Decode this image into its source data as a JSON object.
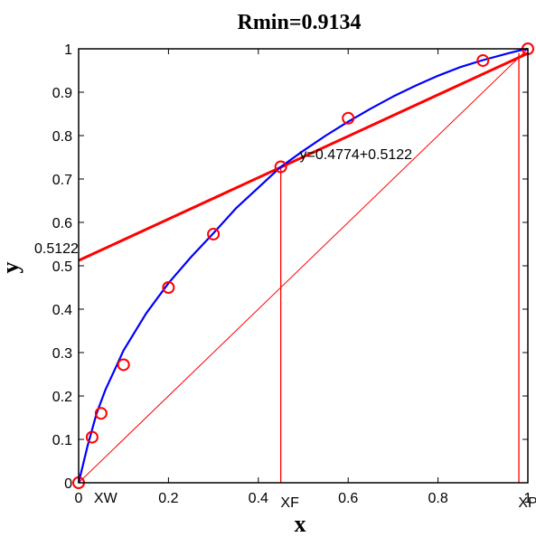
{
  "chart_data": {
    "type": "line",
    "title": "Rmin=0.9134",
    "xlabel": "x",
    "ylabel": "y",
    "xlim": [
      0,
      1
    ],
    "ylim": [
      0,
      1
    ],
    "x_ticks": [
      {
        "value": 0,
        "label": "0"
      },
      {
        "value": 0.2,
        "label": "0.2"
      },
      {
        "value": 0.4,
        "label": "0.4"
      },
      {
        "value": 0.6,
        "label": "0.6"
      },
      {
        "value": 0.8,
        "label": "0.8"
      },
      {
        "value": 1,
        "label": "1"
      }
    ],
    "y_ticks": [
      {
        "value": 0,
        "label": "0"
      },
      {
        "value": 0.1,
        "label": "0.1"
      },
      {
        "value": 0.2,
        "label": "0.2"
      },
      {
        "value": 0.3,
        "label": "0.3"
      },
      {
        "value": 0.4,
        "label": "0.4"
      },
      {
        "value": 0.5,
        "label": "0.5"
      },
      {
        "value": 0.6,
        "label": "0.6"
      },
      {
        "value": 0.7,
        "label": "0.7"
      },
      {
        "value": 0.8,
        "label": "0.8"
      },
      {
        "value": 0.9,
        "label": "0.9"
      },
      {
        "value": 1,
        "label": "1"
      }
    ],
    "grid": false,
    "colors": {
      "equilibrium_curve": "#0000ff",
      "operating_line": "#ff0000",
      "diagonal": "#ff0000",
      "markers": "#ff0000",
      "axes": "#000000"
    },
    "equilibrium_curve": {
      "points": [
        [
          0,
          0
        ],
        [
          0.02,
          0.085
        ],
        [
          0.04,
          0.16
        ],
        [
          0.06,
          0.215
        ],
        [
          0.08,
          0.26
        ],
        [
          0.1,
          0.305
        ],
        [
          0.15,
          0.39
        ],
        [
          0.2,
          0.46
        ],
        [
          0.25,
          0.52
        ],
        [
          0.3,
          0.575
        ],
        [
          0.35,
          0.632
        ],
        [
          0.4,
          0.68
        ],
        [
          0.45,
          0.728
        ],
        [
          0.5,
          0.765
        ],
        [
          0.55,
          0.8
        ],
        [
          0.6,
          0.832
        ],
        [
          0.65,
          0.862
        ],
        [
          0.7,
          0.89
        ],
        [
          0.75,
          0.915
        ],
        [
          0.8,
          0.938
        ],
        [
          0.85,
          0.958
        ],
        [
          0.9,
          0.974
        ],
        [
          0.95,
          0.988
        ],
        [
          0.98,
          0.996
        ],
        [
          1,
          1
        ]
      ]
    },
    "data_points": [
      [
        0,
        0
      ],
      [
        0.03,
        0.105
      ],
      [
        0.05,
        0.16
      ],
      [
        0.1,
        0.272
      ],
      [
        0.2,
        0.45
      ],
      [
        0.3,
        0.573
      ],
      [
        0.45,
        0.728
      ],
      [
        0.6,
        0.84
      ],
      [
        0.9,
        0.973
      ],
      [
        1,
        1
      ]
    ],
    "operating_line": {
      "intercept": 0.5122,
      "slope": 0.4774,
      "x_range": [
        0,
        1
      ],
      "equation_label": "y=0.4774+0.5122",
      "intercept_label": "0.5122"
    },
    "diagonal": {
      "from": [
        0,
        0
      ],
      "to": [
        1,
        1
      ]
    },
    "vertical_markers": [
      {
        "x": 0.45,
        "y_top": 0.728,
        "label": "XF"
      },
      {
        "x": 0.98,
        "y_top": 0.99,
        "label": "XP"
      }
    ],
    "x_annotations": [
      {
        "x": 0.03,
        "label": "XW"
      }
    ]
  }
}
